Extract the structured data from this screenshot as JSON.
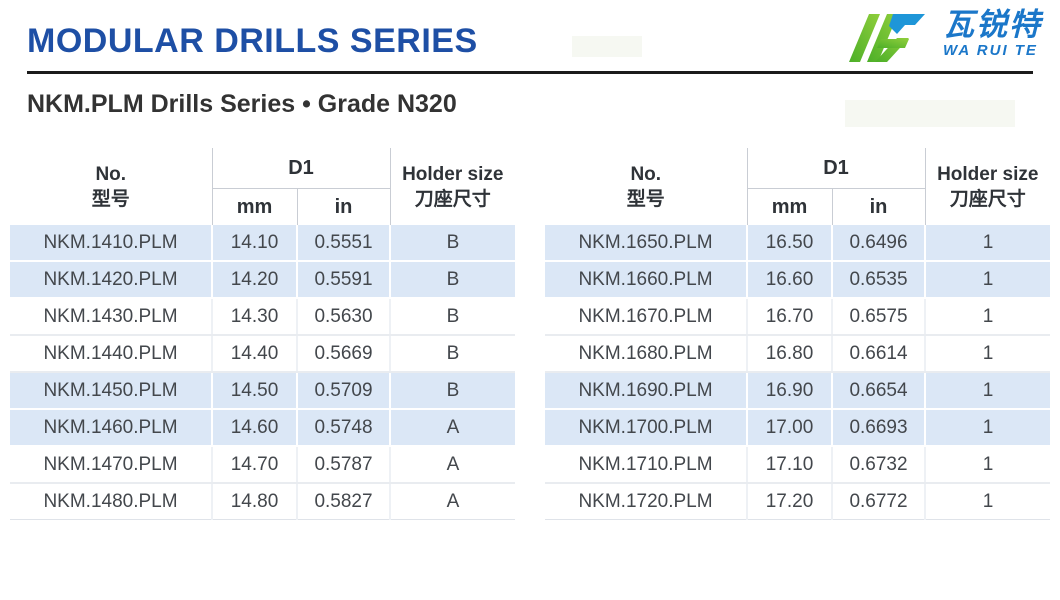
{
  "page": {
    "title": "MODULAR DRILLS SERIES",
    "subtitle": "NKM.PLM Drills Series • Grade N320"
  },
  "logo": {
    "cn": "瓦锐特",
    "en": "WA RUI TE",
    "mark_green": "#5fb72e",
    "mark_green_light": "#8fce3c",
    "mark_blue": "#1e96d8",
    "text_blue": "#1b77c9"
  },
  "colors": {
    "title_blue": "#1e4fa5",
    "rule_black": "#1b1b1b",
    "row_stripe_blue": "#dbe7f6",
    "body_text": "#43474c",
    "header_text": "#2f3338"
  },
  "table_header": {
    "no_en": "No.",
    "no_cn": "型号",
    "d1": "D1",
    "mm": "mm",
    "in": "in",
    "holder_en": "Holder size",
    "holder_cn": "刀座尺寸"
  },
  "tables": [
    {
      "rows": [
        {
          "no": "NKM.1410.PLM",
          "mm": "14.10",
          "in": "0.5551",
          "holder": "B"
        },
        {
          "no": "NKM.1420.PLM",
          "mm": "14.20",
          "in": "0.5591",
          "holder": "B"
        },
        {
          "no": "NKM.1430.PLM",
          "mm": "14.30",
          "in": "0.5630",
          "holder": "B"
        },
        {
          "no": "NKM.1440.PLM",
          "mm": "14.40",
          "in": "0.5669",
          "holder": "B"
        },
        {
          "no": "NKM.1450.PLM",
          "mm": "14.50",
          "in": "0.5709",
          "holder": "B"
        },
        {
          "no": "NKM.1460.PLM",
          "mm": "14.60",
          "in": "0.5748",
          "holder": "A"
        },
        {
          "no": "NKM.1470.PLM",
          "mm": "14.70",
          "in": "0.5787",
          "holder": "A"
        },
        {
          "no": "NKM.1480.PLM",
          "mm": "14.80",
          "in": "0.5827",
          "holder": "A"
        }
      ]
    },
    {
      "rows": [
        {
          "no": "NKM.1650.PLM",
          "mm": "16.50",
          "in": "0.6496",
          "holder": "1"
        },
        {
          "no": "NKM.1660.PLM",
          "mm": "16.60",
          "in": "0.6535",
          "holder": "1"
        },
        {
          "no": "NKM.1670.PLM",
          "mm": "16.70",
          "in": "0.6575",
          "holder": "1"
        },
        {
          "no": "NKM.1680.PLM",
          "mm": "16.80",
          "in": "0.6614",
          "holder": "1"
        },
        {
          "no": "NKM.1690.PLM",
          "mm": "16.90",
          "in": "0.6654",
          "holder": "1"
        },
        {
          "no": "NKM.1700.PLM",
          "mm": "17.00",
          "in": "0.6693",
          "holder": "1"
        },
        {
          "no": "NKM.1710.PLM",
          "mm": "17.10",
          "in": "0.6732",
          "holder": "1"
        },
        {
          "no": "NKM.1720.PLM",
          "mm": "17.20",
          "in": "0.6772",
          "holder": "1"
        }
      ]
    }
  ]
}
